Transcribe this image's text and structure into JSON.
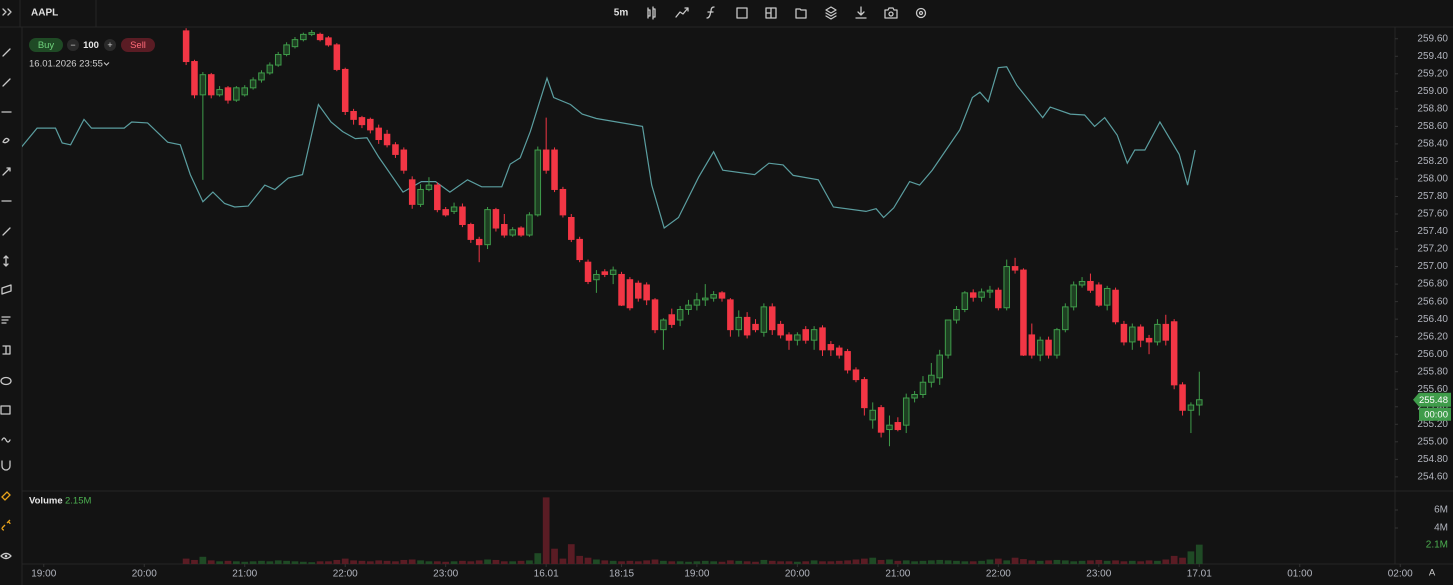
{
  "chart_data": {
    "type": "candlestick",
    "symbol": "AAPL",
    "interval": "5m",
    "trade": {
      "buy": "Buy",
      "minus": "−",
      "quantity": "100",
      "plus": "+",
      "sell": "Sell"
    },
    "cursor_time": "16.01.2026 23:55",
    "up_color": "#3f9c4a",
    "down_color": "#f23645",
    "candles": [
      [
        259.69,
        259.72,
        259.3,
        259.34
      ],
      [
        259.34,
        259.36,
        258.92,
        258.96
      ],
      [
        258.96,
        259.22,
        257.99,
        259.19
      ],
      [
        259.19,
        259.21,
        258.92,
        258.96
      ],
      [
        258.96,
        259.06,
        258.94,
        259.02
      ],
      [
        259.04,
        259.06,
        258.86,
        258.9
      ],
      [
        258.9,
        259.06,
        258.88,
        259.04
      ],
      [
        258.96,
        259.07,
        258.94,
        259.04
      ],
      [
        259.04,
        259.16,
        259.02,
        259.13
      ],
      [
        259.13,
        259.24,
        259.1,
        259.21
      ],
      [
        259.21,
        259.33,
        259.19,
        259.3
      ],
      [
        259.3,
        259.45,
        259.28,
        259.42
      ],
      [
        259.42,
        259.56,
        259.4,
        259.53
      ],
      [
        259.51,
        259.62,
        259.49,
        259.59
      ],
      [
        259.59,
        259.67,
        259.57,
        259.65
      ],
      [
        259.65,
        259.7,
        259.63,
        259.67
      ],
      [
        259.65,
        259.67,
        259.57,
        259.59
      ],
      [
        259.61,
        259.63,
        259.51,
        259.53
      ],
      [
        259.53,
        259.55,
        259.23,
        259.25
      ],
      [
        259.25,
        259.27,
        258.73,
        258.77
      ],
      [
        258.77,
        258.8,
        258.62,
        258.68
      ],
      [
        258.7,
        258.72,
        258.58,
        258.62
      ],
      [
        258.68,
        258.7,
        258.52,
        258.56
      ],
      [
        258.58,
        258.62,
        258.4,
        258.45
      ],
      [
        258.51,
        258.56,
        258.36,
        258.39
      ],
      [
        258.39,
        258.42,
        258.24,
        258.28
      ],
      [
        258.33,
        258.36,
        258.06,
        258.1
      ],
      [
        257.99,
        258.03,
        257.66,
        257.71
      ],
      [
        257.71,
        257.94,
        257.68,
        257.88
      ],
      [
        257.88,
        258.02,
        257.86,
        257.93
      ],
      [
        257.93,
        257.96,
        257.62,
        257.65
      ],
      [
        257.65,
        257.68,
        257.57,
        257.59
      ],
      [
        257.63,
        257.73,
        257.6,
        257.68
      ],
      [
        257.68,
        257.72,
        257.45,
        257.48
      ],
      [
        257.48,
        257.5,
        257.27,
        257.31
      ],
      [
        257.31,
        257.34,
        257.05,
        257.25
      ],
      [
        257.25,
        257.68,
        257.2,
        257.65
      ],
      [
        257.65,
        257.67,
        257.4,
        257.44
      ],
      [
        257.48,
        257.6,
        257.33,
        257.36
      ],
      [
        257.36,
        257.45,
        257.34,
        257.42
      ],
      [
        257.44,
        257.46,
        257.34,
        257.36
      ],
      [
        257.36,
        257.62,
        257.34,
        257.59
      ],
      [
        257.59,
        258.37,
        257.57,
        258.33
      ],
      [
        258.33,
        258.7,
        258.06,
        258.1
      ],
      [
        258.33,
        258.36,
        257.85,
        257.88
      ],
      [
        257.88,
        257.91,
        257.56,
        257.59
      ],
      [
        257.56,
        257.6,
        257.28,
        257.31
      ],
      [
        257.31,
        257.34,
        257.05,
        257.08
      ],
      [
        257.05,
        257.08,
        256.8,
        256.83
      ],
      [
        256.85,
        256.96,
        256.7,
        256.91
      ],
      [
        256.94,
        256.97,
        256.88,
        256.91
      ],
      [
        256.91,
        257.0,
        256.8,
        256.96
      ],
      [
        256.91,
        256.94,
        256.55,
        256.56
      ],
      [
        256.85,
        256.88,
        256.5,
        256.53
      ],
      [
        256.81,
        256.84,
        256.6,
        256.64
      ],
      [
        256.79,
        256.82,
        256.56,
        256.62
      ],
      [
        256.62,
        256.64,
        256.24,
        256.28
      ],
      [
        256.28,
        256.41,
        256.05,
        256.39
      ],
      [
        256.45,
        256.52,
        256.3,
        256.34
      ],
      [
        256.39,
        256.55,
        256.32,
        256.51
      ],
      [
        256.51,
        256.62,
        256.45,
        256.56
      ],
      [
        256.56,
        256.7,
        256.5,
        256.62
      ],
      [
        256.62,
        256.8,
        256.55,
        256.64
      ],
      [
        256.64,
        256.72,
        256.6,
        256.68
      ],
      [
        256.7,
        256.72,
        256.6,
        256.64
      ],
      [
        256.62,
        256.64,
        256.2,
        256.28
      ],
      [
        256.28,
        256.5,
        256.2,
        256.42
      ],
      [
        256.42,
        256.48,
        256.18,
        256.22
      ],
      [
        256.34,
        256.4,
        256.25,
        256.28
      ],
      [
        256.25,
        256.58,
        256.2,
        256.54
      ],
      [
        256.54,
        256.58,
        256.22,
        256.28
      ],
      [
        256.34,
        256.38,
        256.18,
        256.22
      ],
      [
        256.22,
        256.25,
        256.05,
        256.16
      ],
      [
        256.16,
        256.25,
        256.1,
        256.22
      ],
      [
        256.28,
        256.32,
        256.12,
        256.16
      ],
      [
        256.16,
        256.32,
        256.05,
        256.28
      ],
      [
        256.3,
        256.33,
        255.98,
        256.05
      ],
      [
        256.11,
        256.15,
        255.98,
        256.05
      ],
      [
        256.07,
        256.1,
        255.95,
        255.99
      ],
      [
        256.03,
        256.06,
        255.78,
        255.82
      ],
      [
        255.82,
        255.85,
        255.68,
        255.71
      ],
      [
        255.71,
        255.74,
        255.3,
        255.39
      ],
      [
        255.25,
        255.45,
        255.15,
        255.36
      ],
      [
        255.39,
        255.42,
        255.05,
        255.11
      ],
      [
        255.14,
        255.3,
        254.95,
        255.19
      ],
      [
        255.22,
        255.28,
        255.12,
        255.14
      ],
      [
        255.19,
        255.55,
        255.1,
        255.5
      ],
      [
        255.5,
        255.58,
        255.45,
        255.54
      ],
      [
        255.54,
        255.75,
        255.5,
        255.68
      ],
      [
        255.68,
        255.9,
        255.62,
        255.76
      ],
      [
        255.73,
        256.05,
        255.65,
        255.99
      ],
      [
        255.99,
        256.38,
        255.95,
        256.39
      ],
      [
        256.39,
        256.55,
        256.35,
        256.51
      ],
      [
        256.51,
        256.72,
        256.48,
        256.7
      ],
      [
        256.7,
        256.74,
        256.6,
        256.65
      ],
      [
        256.65,
        256.75,
        256.6,
        256.71
      ],
      [
        256.71,
        256.78,
        256.64,
        256.73
      ],
      [
        256.73,
        256.76,
        256.5,
        256.53
      ],
      [
        256.53,
        257.08,
        256.5,
        257.0
      ],
      [
        257.0,
        257.1,
        256.92,
        256.96
      ],
      [
        256.96,
        256.98,
        255.98,
        255.99
      ],
      [
        256.22,
        256.35,
        255.95,
        255.99
      ],
      [
        255.99,
        256.2,
        255.92,
        256.16
      ],
      [
        256.16,
        256.2,
        255.95,
        255.99
      ],
      [
        255.99,
        256.3,
        255.95,
        256.28
      ],
      [
        256.28,
        256.58,
        256.25,
        256.54
      ],
      [
        256.54,
        256.83,
        256.5,
        256.79
      ],
      [
        256.79,
        256.88,
        256.76,
        256.83
      ],
      [
        256.83,
        256.92,
        256.7,
        256.73
      ],
      [
        256.79,
        256.82,
        256.54,
        256.56
      ],
      [
        256.56,
        256.78,
        256.5,
        256.75
      ],
      [
        256.73,
        256.76,
        256.34,
        256.37
      ],
      [
        256.34,
        256.38,
        256.1,
        256.14
      ],
      [
        256.14,
        256.35,
        256.05,
        256.31
      ],
      [
        256.31,
        256.34,
        256.08,
        256.16
      ],
      [
        256.18,
        256.22,
        256.0,
        256.14
      ],
      [
        256.14,
        256.4,
        256.1,
        256.34
      ],
      [
        256.34,
        256.45,
        256.1,
        256.16
      ],
      [
        256.37,
        256.4,
        255.6,
        255.65
      ],
      [
        255.65,
        255.68,
        255.3,
        255.36
      ],
      [
        255.36,
        255.45,
        255.1,
        255.42
      ],
      [
        255.42,
        255.8,
        255.3,
        255.48
      ]
    ],
    "compare": {
      "color": "#5b9ea0",
      "x": [
        -19.7,
        -17.8,
        -15.6,
        -14.8,
        -13.8,
        -12.2,
        -11.3,
        -7.4,
        -6.5,
        -4.6,
        -2.2,
        -0.7,
        0.5,
        2.0,
        3.2,
        4.6,
        5.8,
        7.4,
        9.4,
        10.6,
        12.2,
        13.9,
        15.8,
        17.3,
        18.7,
        20.2,
        21.6,
        23.0,
        25.9,
        28.1,
        29.8,
        31.5,
        33.6,
        35.3,
        37.7,
        38.7,
        39.9,
        41.1,
        43.1,
        43.9,
        45.9,
        47.3,
        49.0,
        54.5,
        55.6,
        57.1,
        58.8,
        61.2,
        63.0,
        64.1,
        67.9,
        69.6,
        71.3,
        72.5,
        75.5,
        77.3,
        81.2,
        82.4,
        83.3,
        84.5,
        86.4,
        87.6,
        89.1,
        92.4,
        93.9,
        94.8,
        95.8,
        97.0,
        98.0,
        99.2,
        102.3,
        103.2,
        105.6,
        107.3,
        108.5,
        109.7,
        111.2,
        112.4,
        113.3,
        114.5,
        116.3,
        118.6,
        119.6,
        120.5
      ],
      "values": [
        258.36,
        258.58,
        258.58,
        258.41,
        258.39,
        258.68,
        258.58,
        258.58,
        258.65,
        258.64,
        258.42,
        258.39,
        258.05,
        257.74,
        257.85,
        257.72,
        257.68,
        257.69,
        257.93,
        257.88,
        258.01,
        258.05,
        258.85,
        258.65,
        258.54,
        258.46,
        258.47,
        258.25,
        257.85,
        257.97,
        257.97,
        257.85,
        257.99,
        257.91,
        257.91,
        258.17,
        258.24,
        258.54,
        259.15,
        258.93,
        258.85,
        258.74,
        258.69,
        258.6,
        257.93,
        257.44,
        257.56,
        258.02,
        258.31,
        258.1,
        258.05,
        258.18,
        258.16,
        258.04,
        257.99,
        257.68,
        257.63,
        257.66,
        257.56,
        257.67,
        257.97,
        257.93,
        258.1,
        258.56,
        258.93,
        258.99,
        258.88,
        259.27,
        259.28,
        259.07,
        258.7,
        258.82,
        258.74,
        258.73,
        258.6,
        258.7,
        258.5,
        258.18,
        258.33,
        258.33,
        258.65,
        258.28,
        257.93,
        258.33
      ]
    },
    "xlim": [
      -19.6,
      151.3
    ],
    "ylim": [
      254.45,
      259.7
    ],
    "yticks": [
      {
        "value": 259.6,
        "label": "259.60"
      },
      {
        "value": 259.4,
        "label": "259.40"
      },
      {
        "value": 259.2,
        "label": "259.20"
      },
      {
        "value": 259,
        "label": "259.00"
      },
      {
        "value": 258.8,
        "label": "258.80"
      },
      {
        "value": 258.6,
        "label": "258.60"
      },
      {
        "value": 258.4,
        "label": "258.40"
      },
      {
        "value": 258.2,
        "label": "258.20"
      },
      {
        "value": 258,
        "label": "258.00"
      },
      {
        "value": 257.8,
        "label": "257.80"
      },
      {
        "value": 257.6,
        "label": "257.60"
      },
      {
        "value": 257.4,
        "label": "257.40"
      },
      {
        "value": 257.2,
        "label": "257.20"
      },
      {
        "value": 257,
        "label": "257.00"
      },
      {
        "value": 256.8,
        "label": "256.80"
      },
      {
        "value": 256.6,
        "label": "256.60"
      },
      {
        "value": 256.4,
        "label": "256.40"
      },
      {
        "value": 256.2,
        "label": "256.20"
      },
      {
        "value": 256,
        "label": "256.00"
      },
      {
        "value": 255.8,
        "label": "255.80"
      },
      {
        "value": 255.6,
        "label": "255.60"
      },
      {
        "value": 255.4,
        "label": "255.40"
      },
      {
        "value": 255.2,
        "label": "255.20"
      },
      {
        "value": 255,
        "label": "255.00"
      },
      {
        "value": 254.8,
        "label": "254.80"
      },
      {
        "value": 254.6,
        "label": "254.60"
      }
    ],
    "xticks": [
      {
        "value": -17,
        "label": "19:00"
      },
      {
        "value": -5,
        "label": "20:00"
      },
      {
        "value": 7,
        "label": "21:00"
      },
      {
        "value": 19,
        "label": "22:00"
      },
      {
        "value": 31,
        "label": "23:00"
      },
      {
        "value": 43,
        "label": "16.01"
      },
      {
        "value": 52,
        "label": "18:15"
      },
      {
        "value": 61,
        "label": "19:00"
      },
      {
        "value": 73,
        "label": "20:00"
      },
      {
        "value": 85,
        "label": "21:00"
      },
      {
        "value": 97,
        "label": "22:00"
      },
      {
        "value": 109,
        "label": "23:00"
      },
      {
        "value": 121,
        "label": "17.01"
      },
      {
        "value": 133,
        "label": "01:00"
      },
      {
        "value": 145,
        "label": "02:00"
      }
    ],
    "last_price": 255.48,
    "countdown": "00:00",
    "volume": {
      "name": "Volume",
      "up_color": "#1f4a25",
      "down_color": "#5a1c24",
      "last_value": {
        "value": 2149000,
        "label": "2.15M"
      },
      "last_axis_label": {
        "value": 2149000,
        "label": "2.1M"
      },
      "ylim": [
        0,
        8000000
      ],
      "yticks": [
        {
          "value": 6000000,
          "label": "6M"
        },
        {
          "value": 4000000,
          "label": "4M"
        }
      ],
      "values": [
        600000,
        450000,
        800000,
        400000,
        300000,
        350000,
        300000,
        250000,
        300000,
        350000,
        300000,
        400000,
        350000,
        300000,
        250000,
        200000,
        300000,
        300000,
        450000,
        600000,
        400000,
        350000,
        300000,
        400000,
        350000,
        300000,
        450000,
        500000,
        400000,
        300000,
        300000,
        250000,
        300000,
        350000,
        300000,
        400000,
        500000,
        450000,
        300000,
        300000,
        350000,
        400000,
        1200000,
        7400000,
        1700000,
        600000,
        2200000,
        900000,
        700000,
        500000,
        400000,
        350000,
        300000,
        350000,
        300000,
        400000,
        500000,
        350000,
        300000,
        300000,
        250000,
        300000,
        350000,
        300000,
        250000,
        400000,
        350000,
        300000,
        250000,
        450000,
        350000,
        300000,
        300000,
        250000,
        300000,
        400000,
        300000,
        300000,
        350000,
        400000,
        500000,
        600000,
        700000,
        450000,
        500000,
        350000,
        400000,
        300000,
        350000,
        400000,
        450000,
        400000,
        350000,
        300000,
        300000,
        350000,
        500000,
        600000,
        400000,
        700000,
        550000,
        400000,
        350000,
        400000,
        450000,
        400000,
        300000,
        350000,
        400000,
        450000,
        350000,
        400000,
        300000,
        350000,
        300000,
        400000,
        350000,
        500000,
        900000,
        700000,
        1400000,
        2149000
      ]
    },
    "scale_mode": "A"
  }
}
